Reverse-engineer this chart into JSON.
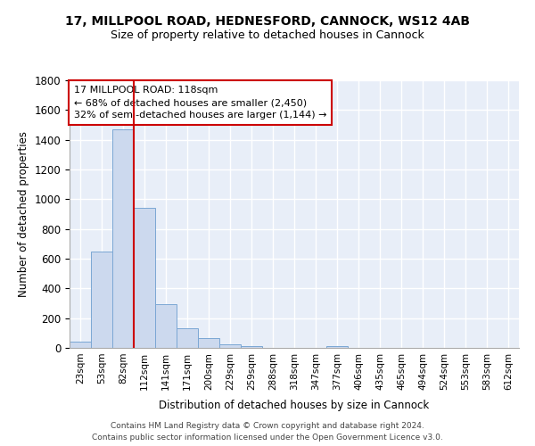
{
  "title1": "17, MILLPOOL ROAD, HEDNESFORD, CANNOCK, WS12 4AB",
  "title2": "Size of property relative to detached houses in Cannock",
  "xlabel": "Distribution of detached houses by size in Cannock",
  "ylabel": "Number of detached properties",
  "bar_color": "#ccd9ee",
  "bar_edge_color": "#7ba7d4",
  "bin_labels": [
    "23sqm",
    "53sqm",
    "82sqm",
    "112sqm",
    "141sqm",
    "171sqm",
    "200sqm",
    "229sqm",
    "259sqm",
    "288sqm",
    "318sqm",
    "347sqm",
    "377sqm",
    "406sqm",
    "435sqm",
    "465sqm",
    "494sqm",
    "524sqm",
    "553sqm",
    "583sqm",
    "612sqm"
  ],
  "bar_values": [
    40,
    650,
    1470,
    940,
    295,
    130,
    65,
    25,
    10,
    0,
    0,
    0,
    10,
    0,
    0,
    0,
    0,
    0,
    0,
    0,
    0
  ],
  "vline_color": "#cc0000",
  "vline_pos": 3.0,
  "annotation_text": "17 MILLPOOL ROAD: 118sqm\n← 68% of detached houses are smaller (2,450)\n32% of semi-detached houses are larger (1,144) →",
  "annotation_box_color": "white",
  "annotation_box_edge_color": "#cc0000",
  "ylim": [
    0,
    1800
  ],
  "yticks": [
    0,
    200,
    400,
    600,
    800,
    1000,
    1200,
    1400,
    1600,
    1800
  ],
  "footer": "Contains HM Land Registry data © Crown copyright and database right 2024.\nContains public sector information licensed under the Open Government Licence v3.0.",
  "background_color": "#e8eef8"
}
